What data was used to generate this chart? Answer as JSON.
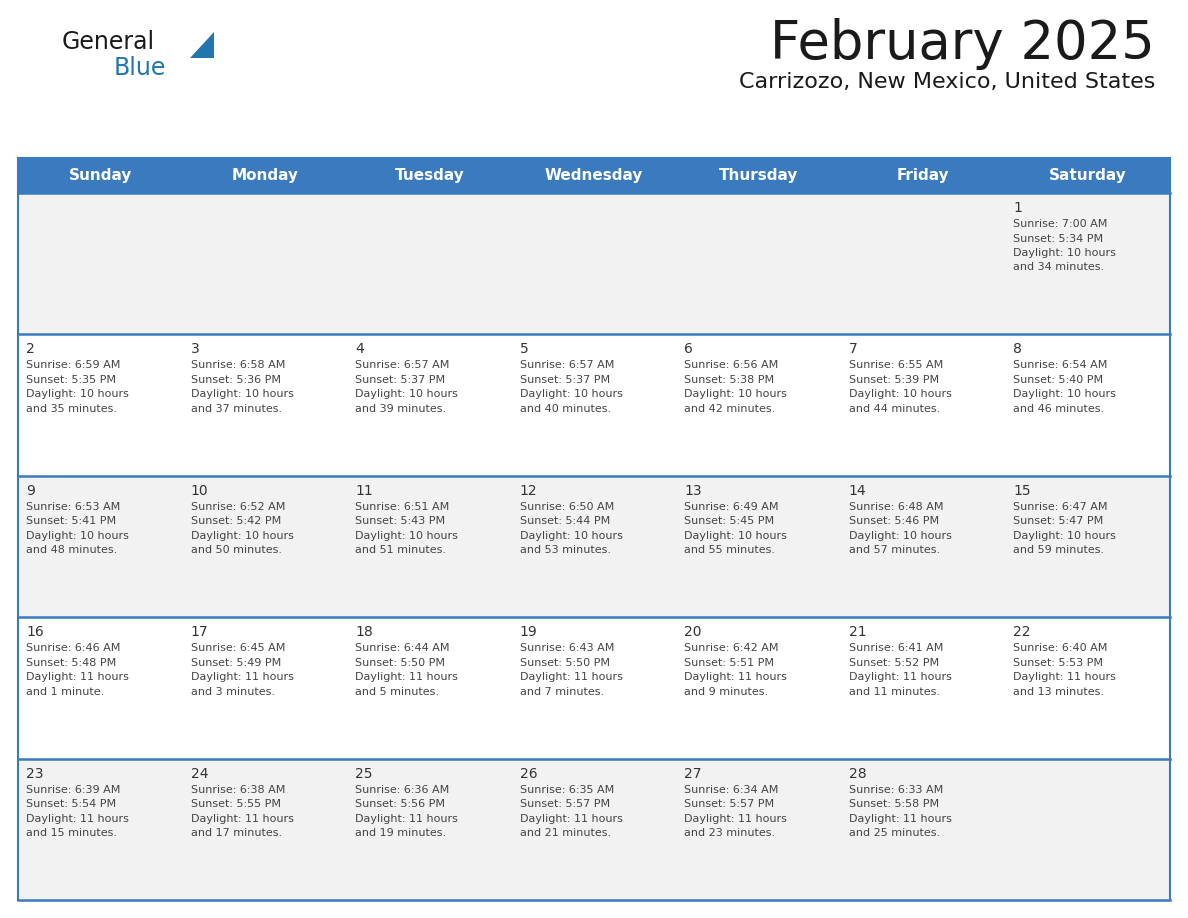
{
  "title": "February 2025",
  "subtitle": "Carrizozo, New Mexico, United States",
  "days_of_week": [
    "Sunday",
    "Monday",
    "Tuesday",
    "Wednesday",
    "Thursday",
    "Friday",
    "Saturday"
  ],
  "header_bg": "#3A7BBF",
  "header_text": "#FFFFFF",
  "row_bg_odd": "#F2F2F2",
  "row_bg_even": "#FFFFFF",
  "cell_text_color": "#444444",
  "day_num_color": "#333333",
  "border_color": "#3A7BBF",
  "sep_line_color": "#3A7BBF",
  "logo_black": "#1a1a1a",
  "logo_blue": "#2176AE",
  "calendar_data": [
    [
      null,
      null,
      null,
      null,
      null,
      null,
      {
        "day": "1",
        "sunrise": "7:00 AM",
        "sunset": "5:34 PM",
        "daylight": "10 hours and 34 minutes."
      }
    ],
    [
      {
        "day": "2",
        "sunrise": "6:59 AM",
        "sunset": "5:35 PM",
        "daylight": "10 hours and 35 minutes."
      },
      {
        "day": "3",
        "sunrise": "6:58 AM",
        "sunset": "5:36 PM",
        "daylight": "10 hours and 37 minutes."
      },
      {
        "day": "4",
        "sunrise": "6:57 AM",
        "sunset": "5:37 PM",
        "daylight": "10 hours and 39 minutes."
      },
      {
        "day": "5",
        "sunrise": "6:57 AM",
        "sunset": "5:37 PM",
        "daylight": "10 hours and 40 minutes."
      },
      {
        "day": "6",
        "sunrise": "6:56 AM",
        "sunset": "5:38 PM",
        "daylight": "10 hours and 42 minutes."
      },
      {
        "day": "7",
        "sunrise": "6:55 AM",
        "sunset": "5:39 PM",
        "daylight": "10 hours and 44 minutes."
      },
      {
        "day": "8",
        "sunrise": "6:54 AM",
        "sunset": "5:40 PM",
        "daylight": "10 hours and 46 minutes."
      }
    ],
    [
      {
        "day": "9",
        "sunrise": "6:53 AM",
        "sunset": "5:41 PM",
        "daylight": "10 hours and 48 minutes."
      },
      {
        "day": "10",
        "sunrise": "6:52 AM",
        "sunset": "5:42 PM",
        "daylight": "10 hours and 50 minutes."
      },
      {
        "day": "11",
        "sunrise": "6:51 AM",
        "sunset": "5:43 PM",
        "daylight": "10 hours and 51 minutes."
      },
      {
        "day": "12",
        "sunrise": "6:50 AM",
        "sunset": "5:44 PM",
        "daylight": "10 hours and 53 minutes."
      },
      {
        "day": "13",
        "sunrise": "6:49 AM",
        "sunset": "5:45 PM",
        "daylight": "10 hours and 55 minutes."
      },
      {
        "day": "14",
        "sunrise": "6:48 AM",
        "sunset": "5:46 PM",
        "daylight": "10 hours and 57 minutes."
      },
      {
        "day": "15",
        "sunrise": "6:47 AM",
        "sunset": "5:47 PM",
        "daylight": "10 hours and 59 minutes."
      }
    ],
    [
      {
        "day": "16",
        "sunrise": "6:46 AM",
        "sunset": "5:48 PM",
        "daylight": "11 hours and 1 minute."
      },
      {
        "day": "17",
        "sunrise": "6:45 AM",
        "sunset": "5:49 PM",
        "daylight": "11 hours and 3 minutes."
      },
      {
        "day": "18",
        "sunrise": "6:44 AM",
        "sunset": "5:50 PM",
        "daylight": "11 hours and 5 minutes."
      },
      {
        "day": "19",
        "sunrise": "6:43 AM",
        "sunset": "5:50 PM",
        "daylight": "11 hours and 7 minutes."
      },
      {
        "day": "20",
        "sunrise": "6:42 AM",
        "sunset": "5:51 PM",
        "daylight": "11 hours and 9 minutes."
      },
      {
        "day": "21",
        "sunrise": "6:41 AM",
        "sunset": "5:52 PM",
        "daylight": "11 hours and 11 minutes."
      },
      {
        "day": "22",
        "sunrise": "6:40 AM",
        "sunset": "5:53 PM",
        "daylight": "11 hours and 13 minutes."
      }
    ],
    [
      {
        "day": "23",
        "sunrise": "6:39 AM",
        "sunset": "5:54 PM",
        "daylight": "11 hours and 15 minutes."
      },
      {
        "day": "24",
        "sunrise": "6:38 AM",
        "sunset": "5:55 PM",
        "daylight": "11 hours and 17 minutes."
      },
      {
        "day": "25",
        "sunrise": "6:36 AM",
        "sunset": "5:56 PM",
        "daylight": "11 hours and 19 minutes."
      },
      {
        "day": "26",
        "sunrise": "6:35 AM",
        "sunset": "5:57 PM",
        "daylight": "11 hours and 21 minutes."
      },
      {
        "day": "27",
        "sunrise": "6:34 AM",
        "sunset": "5:57 PM",
        "daylight": "11 hours and 23 minutes."
      },
      {
        "day": "28",
        "sunrise": "6:33 AM",
        "sunset": "5:58 PM",
        "daylight": "11 hours and 25 minutes."
      },
      null
    ]
  ]
}
